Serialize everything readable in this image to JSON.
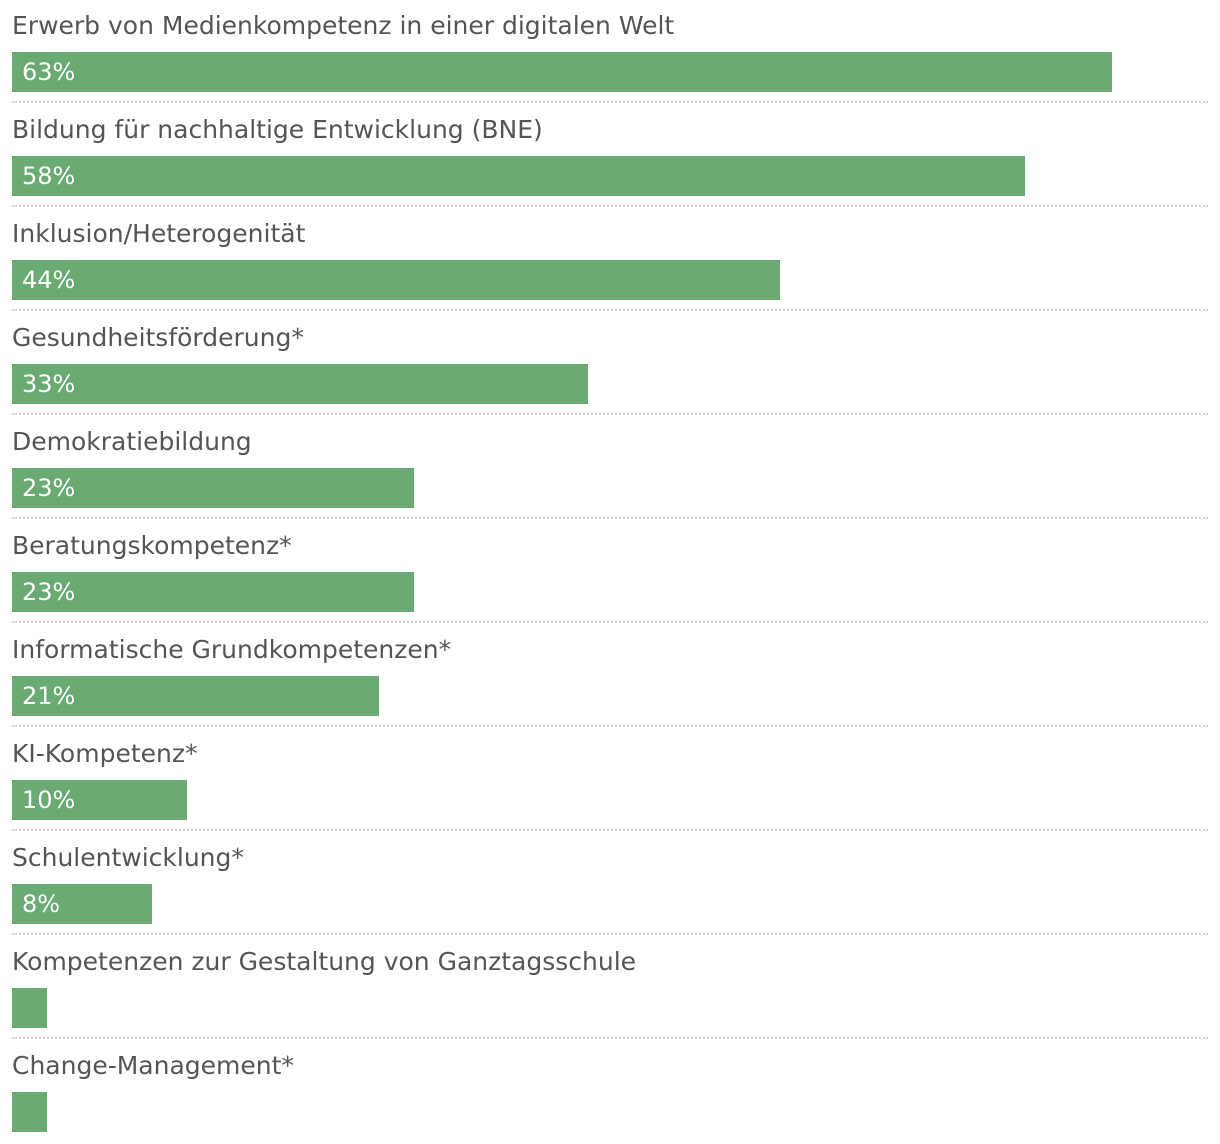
{
  "chart_data": {
    "type": "bar",
    "orientation": "horizontal",
    "bar_color": "#6aaa73",
    "categories": [
      "Erwerb von Medienkompetenz in einer digitalen Welt",
      "Bildung für nachhaltige Entwicklung (BNE)",
      "Inklusion/Heterogenität",
      "Gesundheitsförderung*",
      "Demokratiebildung",
      "Beratungskompetenz*",
      "Informatische Grundkompetenzen*",
      "KI-Kompetenz*",
      "Schulentwicklung*",
      "Kompetenzen zur Gestaltung von Ganztagsschule",
      "Change-Management*"
    ],
    "values": [
      63,
      58,
      44,
      33,
      23,
      23,
      21,
      10,
      8,
      2,
      2
    ],
    "value_labels": [
      "63%",
      "58%",
      "44%",
      "33%",
      "23%",
      "23%",
      "21%",
      "10%",
      "8%",
      "",
      ""
    ],
    "xlim": [
      0,
      68.5
    ],
    "grid": false
  }
}
